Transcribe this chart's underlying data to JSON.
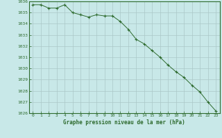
{
  "x": [
    0,
    1,
    2,
    3,
    4,
    5,
    6,
    7,
    8,
    9,
    10,
    11,
    12,
    13,
    14,
    15,
    16,
    17,
    18,
    19,
    20,
    21,
    22,
    23
  ],
  "y": [
    1035.7,
    1035.7,
    1035.4,
    1035.4,
    1035.7,
    1035.0,
    1034.8,
    1034.6,
    1034.8,
    1034.7,
    1034.7,
    1034.2,
    1033.5,
    1032.6,
    1032.2,
    1031.6,
    1031.0,
    1030.3,
    1029.7,
    1029.2,
    1028.5,
    1027.9,
    1027.0,
    1026.2
  ],
  "ylim": [
    1026,
    1036
  ],
  "yticks": [
    1026,
    1027,
    1028,
    1029,
    1030,
    1031,
    1032,
    1033,
    1034,
    1035,
    1036
  ],
  "xlabel": "Graphe pression niveau de la mer (hPa)",
  "line_color": "#2d6a2d",
  "marker_color": "#2d6a2d",
  "bg_color": "#c8e8e8",
  "grid_color": "#aac8c8",
  "axis_label_color": "#2d6a2d",
  "tick_label_color": "#2d6a2d",
  "border_color": "#2d6a2d"
}
